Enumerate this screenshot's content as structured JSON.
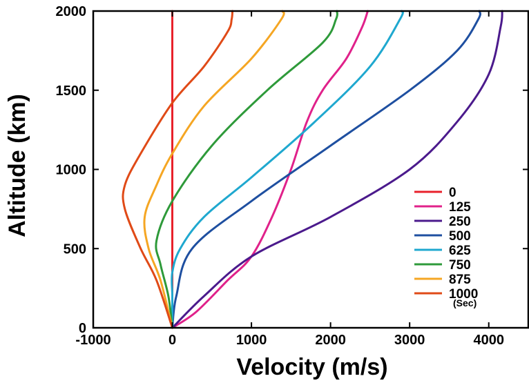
{
  "chart_data": {
    "type": "line",
    "title": "",
    "xlabel": "Velocity (m/s)",
    "ylabel": "Altitude (km)",
    "xlim": [
      -1000,
      4500
    ],
    "ylim": [
      0,
      2000
    ],
    "xticks": [
      -1000,
      0,
      1000,
      2000,
      3000,
      4000
    ],
    "yticks": [
      0,
      500,
      1000,
      1500,
      2000
    ],
    "xtick_labels": [
      "-1000",
      "0",
      "1000",
      "2000",
      "3000",
      "4000"
    ],
    "ytick_labels": [
      "0",
      "500",
      "1000",
      "1500",
      "2000"
    ],
    "grid": false,
    "legend_position": "bottom-right",
    "legend_unit": "(Sec)",
    "series": [
      {
        "name": "0",
        "color": "#e8212b",
        "points": [
          [
            0,
            0
          ],
          [
            0,
            250
          ],
          [
            0,
            500
          ],
          [
            0,
            750
          ],
          [
            0,
            1000
          ],
          [
            0,
            1250
          ],
          [
            0,
            1500
          ],
          [
            0,
            1750
          ],
          [
            0,
            2000
          ]
        ]
      },
      {
        "name": "125",
        "color": "#e0218a",
        "points": [
          [
            0,
            0
          ],
          [
            300,
            100
          ],
          [
            700,
            300
          ],
          [
            1000,
            450
          ],
          [
            1260,
            700
          ],
          [
            1500,
            1000
          ],
          [
            1700,
            1300
          ],
          [
            1900,
            1500
          ],
          [
            2200,
            1700
          ],
          [
            2400,
            1900
          ],
          [
            2470,
            2000
          ]
        ]
      },
      {
        "name": "250",
        "color": "#4b1a8c",
        "points": [
          [
            0,
            0
          ],
          [
            400,
            200
          ],
          [
            1000,
            450
          ],
          [
            2000,
            700
          ],
          [
            3000,
            1000
          ],
          [
            3600,
            1300
          ],
          [
            4000,
            1600
          ],
          [
            4150,
            1900
          ],
          [
            4170,
            2000
          ]
        ]
      },
      {
        "name": "500",
        "color": "#1e4fa0",
        "points": [
          [
            0,
            0
          ],
          [
            50,
            200
          ],
          [
            250,
            500
          ],
          [
            1000,
            800
          ],
          [
            2000,
            1150
          ],
          [
            3000,
            1500
          ],
          [
            3600,
            1750
          ],
          [
            3870,
            1950
          ],
          [
            3880,
            2000
          ]
        ]
      },
      {
        "name": "625",
        "color": "#1fa8cf",
        "points": [
          [
            0,
            0
          ],
          [
            0,
            200
          ],
          [
            0,
            350
          ],
          [
            100,
            500
          ],
          [
            400,
            700
          ],
          [
            1000,
            950
          ],
          [
            1800,
            1300
          ],
          [
            2500,
            1650
          ],
          [
            2880,
            1950
          ],
          [
            2900,
            2000
          ]
        ]
      },
      {
        "name": "750",
        "color": "#2e9a3a",
        "points": [
          [
            0,
            0
          ],
          [
            -50,
            200
          ],
          [
            -150,
            400
          ],
          [
            -200,
            550
          ],
          [
            0,
            800
          ],
          [
            500,
            1150
          ],
          [
            1200,
            1500
          ],
          [
            1900,
            1800
          ],
          [
            2070,
            1950
          ],
          [
            2080,
            2000
          ]
        ]
      },
      {
        "name": "875",
        "color": "#f5a623",
        "points": [
          [
            0,
            0
          ],
          [
            -150,
            300
          ],
          [
            -300,
            500
          ],
          [
            -350,
            700
          ],
          [
            -200,
            900
          ],
          [
            0,
            1100
          ],
          [
            400,
            1400
          ],
          [
            1000,
            1700
          ],
          [
            1380,
            1950
          ],
          [
            1390,
            2000
          ]
        ]
      },
      {
        "name": "1000",
        "color": "#e04a17",
        "points": [
          [
            0,
            0
          ],
          [
            -200,
            300
          ],
          [
            -400,
            500
          ],
          [
            -600,
            750
          ],
          [
            -600,
            900
          ],
          [
            -400,
            1100
          ],
          [
            0,
            1420
          ],
          [
            400,
            1650
          ],
          [
            700,
            1870
          ],
          [
            750,
            1950
          ],
          [
            760,
            2000
          ]
        ]
      }
    ]
  }
}
